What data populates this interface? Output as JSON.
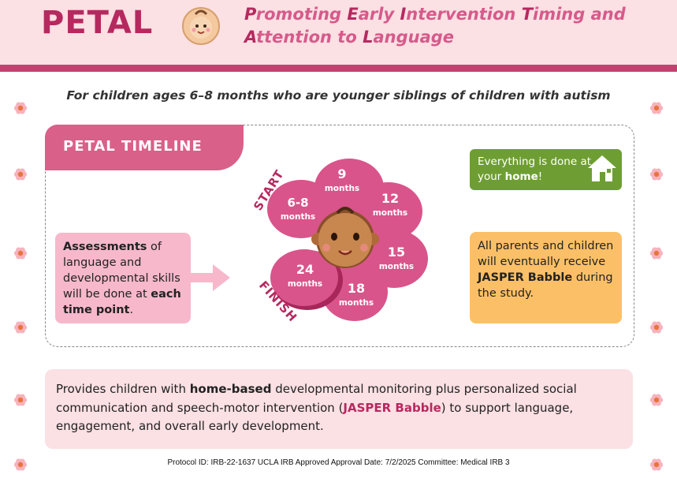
{
  "header": {
    "logo": "PETAL",
    "title_line1_parts": [
      "P",
      "romoting ",
      "E",
      "arly ",
      "I",
      "ntervention ",
      "T",
      "iming and"
    ],
    "title_line2_parts": [
      "A",
      "ttention to ",
      "L",
      "anguage"
    ]
  },
  "subtitle": "For children ages 6–8 months who are younger siblings of children with autism",
  "timeline": {
    "tab_label": "PETAL TIMELINE",
    "start_label": "START",
    "finish_label": "FINISH",
    "petals": [
      {
        "num": "9",
        "unit": "months"
      },
      {
        "num": "12",
        "unit": "months"
      },
      {
        "num": "15",
        "unit": "months"
      },
      {
        "num": "18",
        "unit": "months"
      },
      {
        "num": "24",
        "unit": "months"
      },
      {
        "num": "6-8",
        "unit": "months"
      }
    ]
  },
  "assessment": {
    "b1": "Assessments",
    "t1": " of language and developmental skills will be done at ",
    "b2": "each time point",
    "t2": "."
  },
  "home": {
    "t1": "Everything is done at your ",
    "b1": "home",
    "t2": "!"
  },
  "jasper": {
    "t1": "All parents and children will eventually receive ",
    "b1": "JASPER Babble",
    "t2": " during the study."
  },
  "bottom": {
    "t1": "Provides children with ",
    "b1": "home-based",
    "t2": " developmental monitoring plus personalized social communication and speech-motor intervention (",
    "j1": "JASPER Babble",
    "t3": ") to support language, engagement, and overall early development."
  },
  "footer": "Protocol ID: IRB-22-1637   UCLA IRB Approved Approval Date: 7/2/2025  Committee: Medical IRB 3",
  "colors": {
    "brand": "#b6295f",
    "petal": "#d9548a",
    "green": "#6e9e33",
    "orange": "#fbc067",
    "pink_light": "#fbe0e4"
  }
}
